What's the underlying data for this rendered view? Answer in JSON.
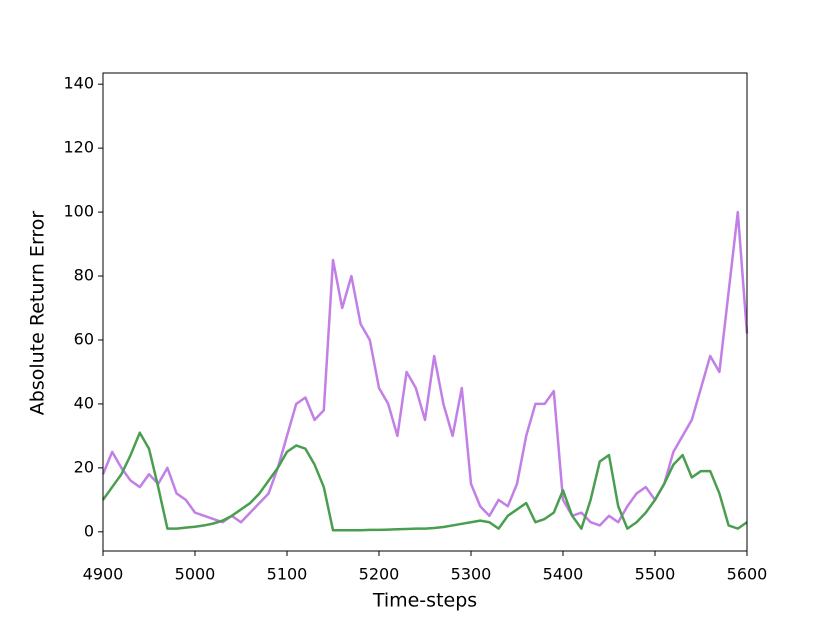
{
  "chart_data": {
    "type": "line",
    "xlabel": "Time-steps",
    "ylabel": "Absolute Return Error",
    "x": [
      4900,
      4910,
      4920,
      4930,
      4940,
      4950,
      4960,
      4970,
      4980,
      4990,
      5000,
      5010,
      5020,
      5030,
      5040,
      5050,
      5060,
      5070,
      5080,
      5090,
      5100,
      5110,
      5120,
      5130,
      5140,
      5150,
      5160,
      5170,
      5180,
      5190,
      5200,
      5210,
      5220,
      5230,
      5240,
      5250,
      5260,
      5270,
      5280,
      5290,
      5300,
      5310,
      5320,
      5330,
      5340,
      5350,
      5360,
      5370,
      5380,
      5390,
      5400,
      5410,
      5420,
      5430,
      5440,
      5450,
      5460,
      5470,
      5480,
      5490,
      5500,
      5510,
      5520,
      5530,
      5540,
      5550,
      5560,
      5570,
      5580,
      5590,
      5600
    ],
    "series": [
      {
        "color": "#c27fe6",
        "values": [
          18,
          25,
          20,
          16,
          14,
          18,
          15,
          20,
          12,
          10,
          6,
          5,
          4,
          3,
          5,
          3,
          6,
          9,
          12,
          20,
          30,
          40,
          42,
          35,
          38,
          85,
          70,
          80,
          65,
          60,
          45,
          40,
          30,
          50,
          45,
          35,
          55,
          40,
          30,
          45,
          15,
          8,
          5,
          10,
          8,
          15,
          30,
          40,
          40,
          44,
          10,
          5,
          6,
          3,
          2,
          5,
          3,
          8,
          12,
          14,
          10,
          15,
          25,
          30,
          35,
          45,
          55,
          50,
          75,
          100,
          62
        ]
      },
      {
        "color": "#4a9e50",
        "values": [
          10,
          14,
          18,
          24,
          31,
          26,
          14,
          1,
          1,
          1.3,
          1.6,
          2,
          2.6,
          3.5,
          5,
          7,
          9,
          12,
          16,
          20,
          25,
          27,
          26,
          21,
          14,
          0.5,
          0.5,
          0.5,
          0.5,
          0.6,
          0.6,
          0.7,
          0.8,
          0.9,
          1,
          1,
          1.2,
          1.5,
          2,
          2.5,
          3,
          3.5,
          3,
          1,
          5,
          7,
          9,
          3,
          4,
          6,
          13,
          5,
          1,
          10,
          22,
          24,
          8,
          1,
          3,
          6,
          10,
          15,
          21,
          24,
          17,
          19,
          19,
          12,
          2,
          1,
          3
        ]
      }
    ],
    "xlim": [
      4900,
      5600
    ],
    "xticks": [
      4900,
      5000,
      5100,
      5200,
      5300,
      5400,
      5500,
      5600
    ],
    "ylim": [
      -6,
      143.5
    ],
    "yticks": [
      0,
      20,
      40,
      60,
      80,
      100,
      120,
      140
    ]
  }
}
